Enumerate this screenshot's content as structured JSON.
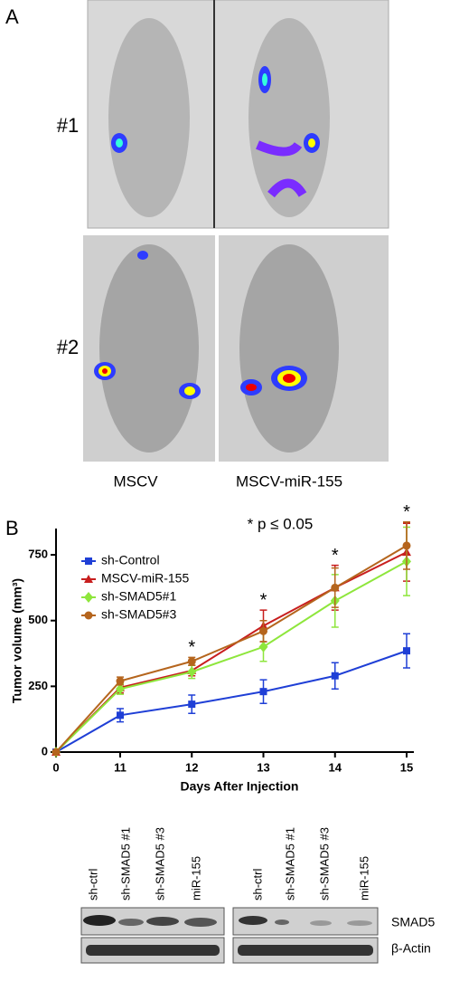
{
  "panel_a": {
    "label": "A",
    "rows": [
      "#1",
      "#2"
    ],
    "columns": [
      "MSCV",
      "MSCV-miR-155"
    ]
  },
  "chart_data": {
    "type": "line",
    "panel_label": "B",
    "annotation": "* p ≤ 0.05",
    "x_label": "Days After Injection",
    "y_label": "Tumor volume (mm³)",
    "categories": [
      "0",
      "11",
      "12",
      "13",
      "14",
      "15"
    ],
    "ylim": [
      0,
      850
    ],
    "yticks": [
      0,
      250,
      500,
      750
    ],
    "significance": [
      null,
      null,
      "*",
      "*",
      "*",
      "*"
    ],
    "series": [
      {
        "name": "sh-Control",
        "color": "#1f3fd6",
        "marker": "square",
        "values": [
          0,
          140,
          182,
          230,
          290,
          385
        ],
        "errors": [
          0,
          25,
          35,
          45,
          50,
          65
        ]
      },
      {
        "name": "MSCV-miR-155",
        "color": "#c81e1e",
        "marker": "triangle",
        "values": [
          0,
          245,
          310,
          480,
          625,
          760
        ],
        "errors": [
          0,
          20,
          20,
          60,
          85,
          110
        ]
      },
      {
        "name": "sh-SMAD5#1",
        "color": "#8ee63c",
        "marker": "diamond",
        "values": [
          0,
          240,
          305,
          400,
          575,
          725
        ],
        "errors": [
          0,
          20,
          25,
          55,
          100,
          130
        ]
      },
      {
        "name": "sh-SMAD5#3",
        "color": "#b5651d",
        "marker": "circle",
        "values": [
          0,
          270,
          345,
          460,
          625,
          785
        ],
        "errors": [
          0,
          15,
          15,
          40,
          75,
          90
        ]
      }
    ]
  },
  "blot": {
    "lanes": [
      [
        "sh-ctrl",
        "sh-SMAD5 #1",
        "sh-SMAD5 #3",
        "miR-155"
      ],
      [
        "sh-ctrl",
        "sh-SMAD5 #1",
        "sh-SMAD5 #3",
        "miR-155"
      ]
    ],
    "rows": [
      "SMAD5",
      "β-Actin"
    ]
  }
}
